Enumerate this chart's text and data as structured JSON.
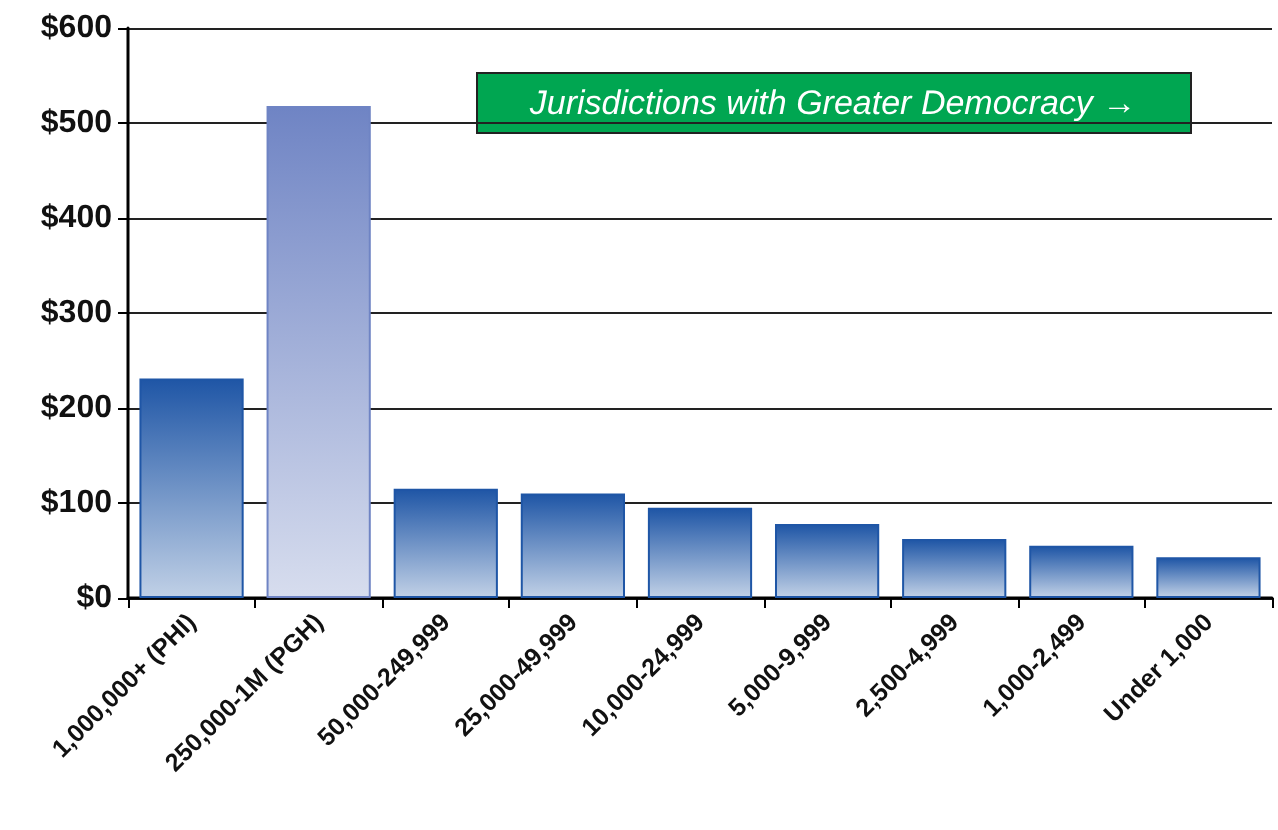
{
  "chart_data": {
    "type": "bar",
    "categories": [
      "1,000,000+ (PHI)",
      "250,000-1M (PGH)",
      "50,000-249,999",
      "25,000-49,999",
      "10,000-24,999",
      "5,000-9,999",
      "2,500-4,999",
      "1,000-2,499",
      "Under 1,000"
    ],
    "values": [
      231,
      518,
      115,
      110,
      95,
      78,
      62,
      55,
      43
    ],
    "colors": [
      "#1f56a6",
      "#6f84c4",
      "#1f56a6",
      "#1f56a6",
      "#1f56a6",
      "#1f56a6",
      "#1f56a6",
      "#1f56a6",
      "#1f56a6"
    ],
    "ylim": [
      0,
      600
    ],
    "yticks": [
      {
        "value": 0,
        "label": "$0"
      },
      {
        "value": 100,
        "label": "$100"
      },
      {
        "value": 200,
        "label": "$200"
      },
      {
        "value": 300,
        "label": "$300"
      },
      {
        "value": 400,
        "label": "$400"
      },
      {
        "value": 500,
        "label": "$500"
      },
      {
        "value": 600,
        "label": "$600"
      }
    ],
    "grid": "y",
    "annotations": [
      "Jurisdictions with Greater Democracy →"
    ]
  }
}
